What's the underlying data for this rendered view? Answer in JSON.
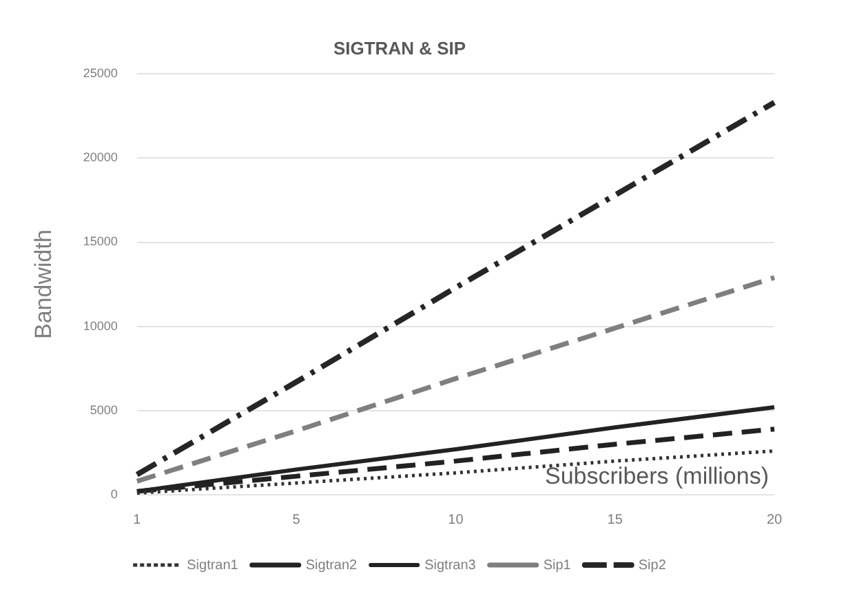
{
  "chart_data": {
    "type": "line",
    "title": "SIGTRAN & SIP",
    "xlabel": "Subscribers (millions)",
    "ylabel": "Bandwidth",
    "categories": [
      "1",
      "5",
      "10",
      "15",
      "20"
    ],
    "series": [
      {
        "name": "Sigtran1",
        "color": "#333333",
        "line_style": "dotted",
        "values": [
          100,
          700,
          1300,
          2000,
          2600
        ]
      },
      {
        "name": "Sigtran2",
        "color": "#222222",
        "line_style": "dashed",
        "values": [
          200,
          1100,
          2000,
          3000,
          3900
        ]
      },
      {
        "name": "Sigtran3",
        "color": "#222222",
        "line_style": "solid",
        "values": [
          200,
          1500,
          2700,
          4000,
          5200
        ]
      },
      {
        "name": "Sip1",
        "color": "#7f7f7f",
        "line_style": "dashed",
        "values": [
          800,
          3800,
          6900,
          9900,
          12900
        ]
      },
      {
        "name": "Sip2",
        "color": "#262626",
        "line_style": "dashdot",
        "values": [
          1200,
          6700,
          12300,
          17800,
          23300
        ]
      }
    ],
    "ylim": [
      0,
      25000
    ],
    "yticks": [
      0,
      5000,
      10000,
      15000,
      20000,
      25000
    ],
    "grid": "y",
    "legend": "bottom",
    "marker": "none"
  }
}
